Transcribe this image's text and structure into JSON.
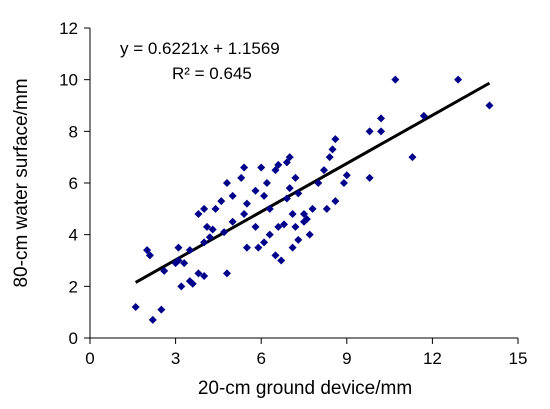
{
  "chart_data": {
    "type": "scatter",
    "title": "",
    "xlabel": "20-cm ground device/mm",
    "ylabel": "80-cm water surface/mm",
    "xlim": [
      0,
      15
    ],
    "ylim": [
      0,
      12
    ],
    "x_ticks": [
      0,
      3,
      6,
      9,
      12,
      15
    ],
    "y_ticks": [
      0,
      2,
      4,
      6,
      8,
      10,
      12
    ],
    "grid": false,
    "legend": "none",
    "marker": "diamond",
    "marker_color": "#00008B",
    "trendline": {
      "slope": 0.6221,
      "intercept": 1.1569,
      "x_range": [
        1.6,
        14.0
      ],
      "color": "#000000",
      "equation_label": "y = 0.6221x + 1.1569",
      "r2_label": "R² = 0.645"
    },
    "points": [
      [
        1.6,
        1.2
      ],
      [
        2.0,
        3.4
      ],
      [
        2.1,
        3.2
      ],
      [
        2.2,
        0.7
      ],
      [
        2.5,
        1.1
      ],
      [
        2.6,
        2.6
      ],
      [
        3.0,
        2.9
      ],
      [
        3.1,
        3.0
      ],
      [
        3.1,
        3.5
      ],
      [
        3.2,
        2.0
      ],
      [
        3.3,
        2.9
      ],
      [
        3.5,
        2.2
      ],
      [
        3.5,
        3.4
      ],
      [
        3.6,
        2.1
      ],
      [
        3.8,
        2.5
      ],
      [
        3.8,
        4.8
      ],
      [
        4.0,
        2.4
      ],
      [
        4.0,
        3.7
      ],
      [
        4.0,
        5.0
      ],
      [
        4.1,
        4.3
      ],
      [
        4.2,
        3.9
      ],
      [
        4.3,
        4.2
      ],
      [
        4.4,
        5.0
      ],
      [
        4.6,
        5.3
      ],
      [
        4.7,
        4.1
      ],
      [
        4.8,
        2.5
      ],
      [
        4.8,
        6.0
      ],
      [
        5.0,
        4.5
      ],
      [
        5.0,
        5.5
      ],
      [
        5.3,
        6.2
      ],
      [
        5.4,
        4.8
      ],
      [
        5.4,
        6.6
      ],
      [
        5.5,
        3.5
      ],
      [
        5.5,
        5.2
      ],
      [
        5.8,
        4.3
      ],
      [
        5.8,
        5.7
      ],
      [
        5.9,
        3.5
      ],
      [
        6.0,
        6.6
      ],
      [
        6.1,
        3.7
      ],
      [
        6.1,
        5.5
      ],
      [
        6.2,
        6.0
      ],
      [
        6.3,
        4.0
      ],
      [
        6.3,
        5.0
      ],
      [
        6.5,
        3.2
      ],
      [
        6.5,
        6.5
      ],
      [
        6.6,
        4.3
      ],
      [
        6.6,
        6.7
      ],
      [
        6.7,
        3.0
      ],
      [
        6.8,
        4.4
      ],
      [
        6.9,
        5.4
      ],
      [
        6.9,
        6.8
      ],
      [
        7.0,
        5.8
      ],
      [
        7.0,
        7.0
      ],
      [
        7.1,
        3.5
      ],
      [
        7.1,
        4.8
      ],
      [
        7.2,
        4.3
      ],
      [
        7.2,
        6.2
      ],
      [
        7.3,
        3.8
      ],
      [
        7.3,
        5.6
      ],
      [
        7.5,
        4.5
      ],
      [
        7.5,
        4.8
      ],
      [
        7.6,
        4.6
      ],
      [
        7.7,
        4.0
      ],
      [
        7.8,
        5.0
      ],
      [
        8.0,
        6.0
      ],
      [
        8.2,
        6.5
      ],
      [
        8.3,
        5.0
      ],
      [
        8.4,
        7.0
      ],
      [
        8.5,
        7.3
      ],
      [
        8.6,
        5.3
      ],
      [
        8.6,
        7.7
      ],
      [
        8.9,
        6.0
      ],
      [
        9.0,
        6.3
      ],
      [
        9.8,
        6.2
      ],
      [
        9.8,
        8.0
      ],
      [
        10.2,
        8.0
      ],
      [
        10.2,
        8.5
      ],
      [
        10.7,
        10.0
      ],
      [
        11.3,
        7.0
      ],
      [
        11.7,
        8.6
      ],
      [
        12.9,
        10.0
      ],
      [
        14.0,
        9.0
      ]
    ]
  }
}
